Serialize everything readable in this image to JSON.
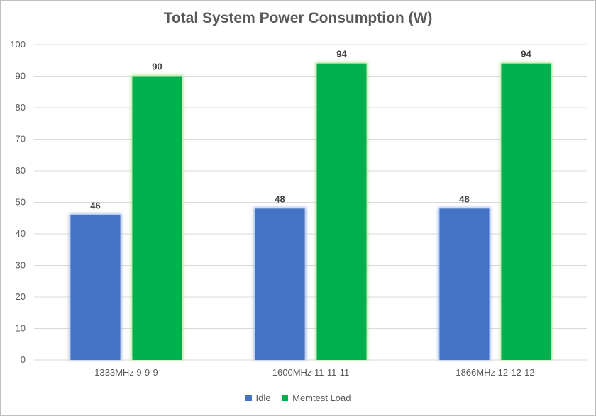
{
  "chart_data": {
    "type": "bar",
    "title": "Total System Power Consumption (W)",
    "categories": [
      "1333MHz 9-9-9",
      "1600MHz 11-11-11",
      "1866MHz 12-12-12"
    ],
    "series": [
      {
        "name": "Idle",
        "color": "#4472c4",
        "glow": "#9fb8ea",
        "values": [
          46,
          48,
          48
        ]
      },
      {
        "name": "Memtest Load",
        "color": "#00b050",
        "glow": "#b6e89a",
        "values": [
          90,
          94,
          94
        ]
      }
    ],
    "ylim": [
      0,
      100
    ],
    "yticks": [
      0,
      10,
      20,
      30,
      40,
      50,
      60,
      70,
      80,
      90,
      100
    ],
    "grid": true,
    "legend": "bottom"
  }
}
